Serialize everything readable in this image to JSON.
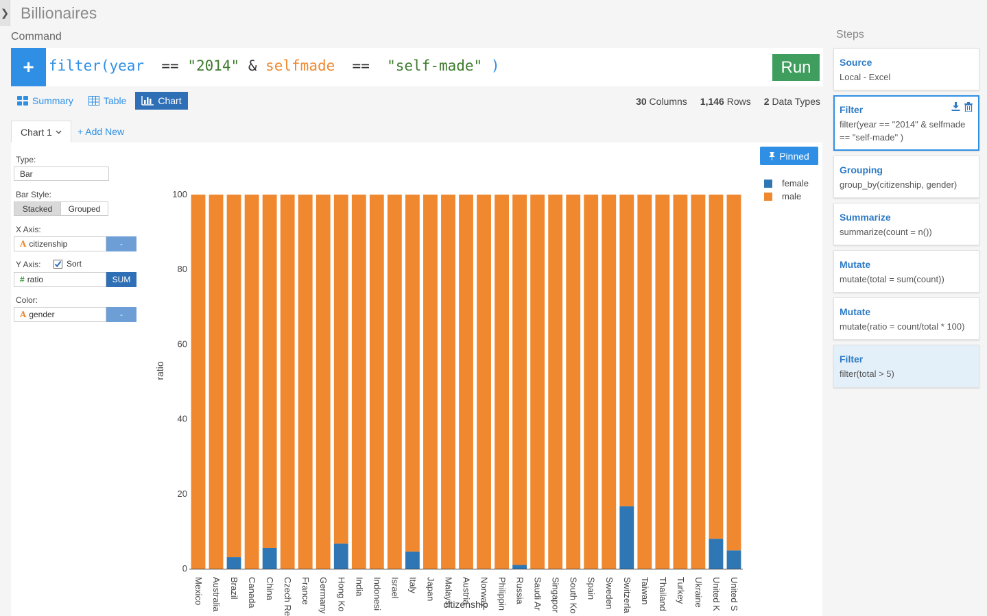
{
  "app": {
    "title": "Billionaires",
    "command_label": "Command"
  },
  "command": {
    "add_label": "+",
    "tokens": [
      {
        "t": "filter(",
        "c": "fn"
      },
      {
        "t": "year",
        "c": "fn"
      },
      {
        "t": "  == ",
        "c": "op"
      },
      {
        "t": "\"2014\"",
        "c": "str"
      },
      {
        "t": " & ",
        "c": "op"
      },
      {
        "t": "selfmade",
        "c": "col"
      },
      {
        "t": "  == ",
        "c": "op"
      },
      {
        "t": " \"self-made\"",
        "c": "str"
      },
      {
        "t": " )",
        "c": "fn"
      }
    ],
    "run_label": "Run"
  },
  "view_tabs": [
    {
      "label": "Summary",
      "icon": "grid-icon",
      "active": false
    },
    {
      "label": "Table",
      "icon": "table-icon",
      "active": false
    },
    {
      "label": "Chart",
      "icon": "bar-chart-icon",
      "active": true
    }
  ],
  "stats": {
    "columns_num": "30",
    "columns_label": "Columns",
    "rows_num": "1,146",
    "rows_label": "Rows",
    "types_num": "2",
    "types_label": "Data Types"
  },
  "chart_tabs": {
    "current": "Chart 1",
    "add_new": "+ Add New"
  },
  "config": {
    "type_label": "Type:",
    "type_value": "Bar",
    "bar_style_label": "Bar Style:",
    "stacked": "Stacked",
    "grouped": "Grouped",
    "x_axis_label": "X Axis:",
    "x_field": "citizenship",
    "x_fn": "-",
    "y_axis_label": "Y Axis:",
    "sort_label": "Sort",
    "sort_checked": true,
    "y_field": "ratio",
    "y_fn": "SUM",
    "color_label": "Color:",
    "color_field": "gender",
    "color_fn": "-"
  },
  "pinned_label": "Pinned",
  "steps_title": "Steps",
  "steps": [
    {
      "title": "Source",
      "desc": "Local - Excel"
    },
    {
      "title": "Filter",
      "desc": "filter(year == \"2014\" & selfmade == \"self-made\" )"
    },
    {
      "title": "Grouping",
      "desc": "group_by(citizenship, gender)"
    },
    {
      "title": "Summarize",
      "desc": "summarize(count = n())"
    },
    {
      "title": "Mutate",
      "desc": "mutate(total = sum(count))"
    },
    {
      "title": "Mutate",
      "desc": "mutate(ratio = count/total * 100)"
    },
    {
      "title": "Filter",
      "desc": "filter(total > 5)"
    }
  ],
  "colors": {
    "accent": "#2e8fe5",
    "run": "#3f9e5e",
    "female": "#2e77b4",
    "male": "#f0882f"
  },
  "chart_data": {
    "type": "bar",
    "stacked": true,
    "xlabel": "citizenship",
    "ylabel": "ratio",
    "ylim": [
      0,
      100
    ],
    "yticks": [
      0,
      20,
      40,
      60,
      80,
      100
    ],
    "categories": [
      "Mexico",
      "Australia",
      "Brazil",
      "Canada",
      "China",
      "Czech Re",
      "France",
      "Germany",
      "Hong Ko",
      "India",
      "Indonesi",
      "Israel",
      "Italy",
      "Japan",
      "Malaysi",
      "Austria",
      "Norway",
      "Philippin",
      "Russia",
      "Saudi Ar",
      "Singapor",
      "South Ko",
      "Spain",
      "Sweden",
      "Switzerla",
      "Taiwan",
      "Thailand",
      "Turkey",
      "Ukraine",
      "United K",
      "United S"
    ],
    "legend_position": "top-right",
    "series": [
      {
        "name": "female",
        "values": [
          0,
          0,
          3.1,
          0,
          5.5,
          0,
          0,
          0,
          6.7,
          0,
          0,
          0,
          4.6,
          0,
          0,
          0,
          0,
          0,
          1.0,
          0,
          0,
          0,
          0,
          0,
          16.7,
          0,
          0,
          0,
          0,
          8.0,
          4.9
        ]
      },
      {
        "name": "male",
        "values": [
          100,
          100,
          96.9,
          100,
          94.5,
          100,
          100,
          100,
          93.3,
          100,
          100,
          100,
          95.4,
          100,
          100,
          100,
          100,
          100,
          99.0,
          100,
          100,
          100,
          100,
          100,
          83.3,
          100,
          100,
          100,
          100,
          92.0,
          95.1
        ]
      }
    ]
  }
}
